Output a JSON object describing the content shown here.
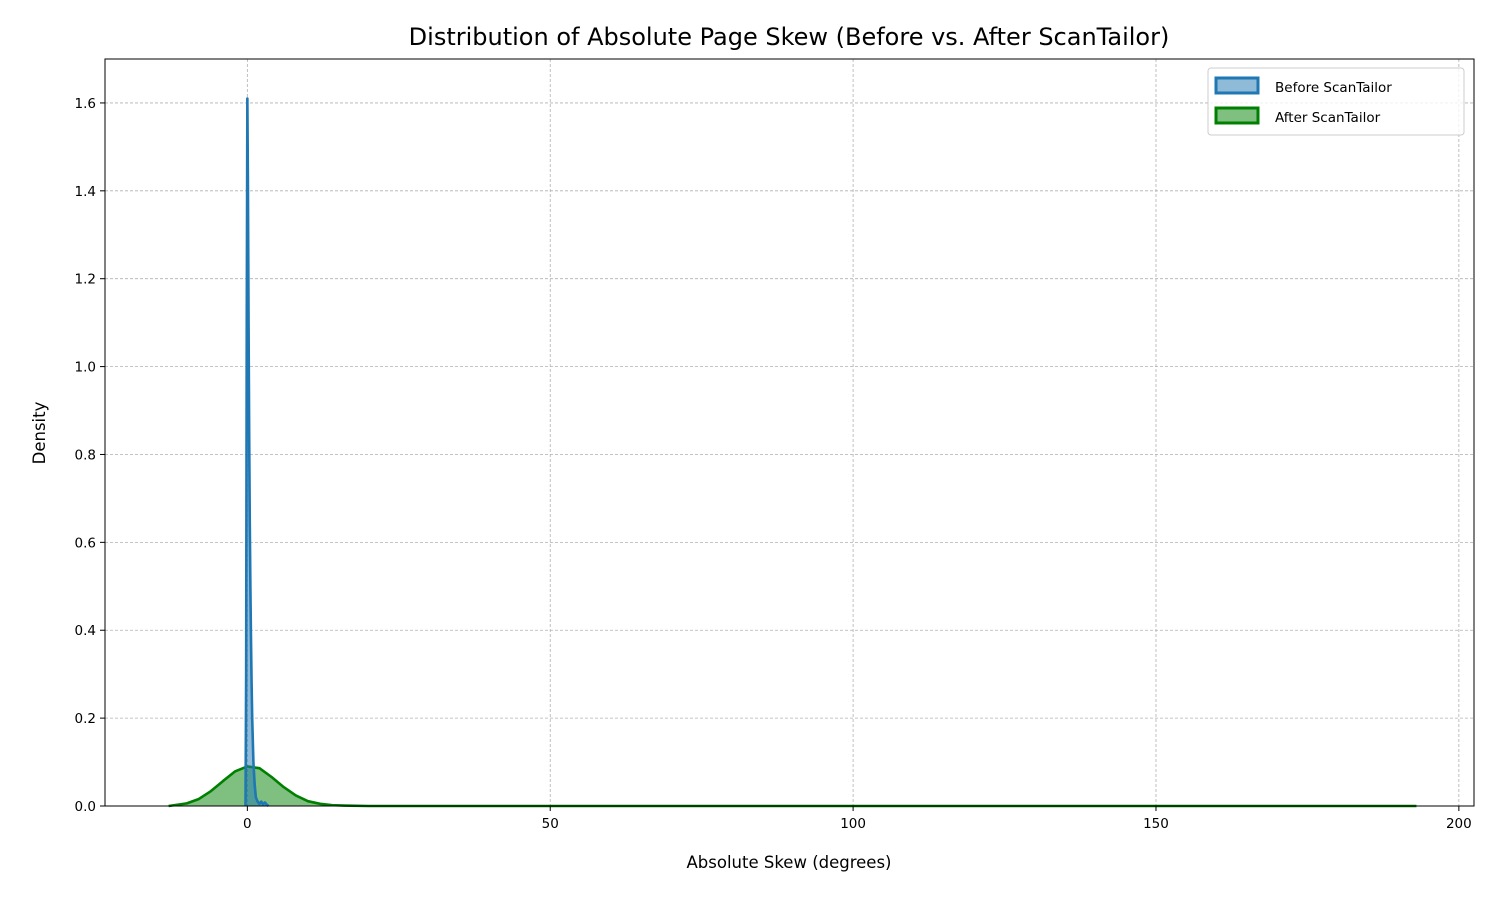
{
  "chart_data": {
    "type": "area",
    "title": "Distribution of Absolute Page Skew (Before vs. After ScanTailor)",
    "xlabel": "Absolute Skew (degrees)",
    "ylabel": "Density",
    "xlim": [
      -23.5,
      202.5
    ],
    "ylim": [
      0,
      1.7
    ],
    "xticks": [
      0,
      50,
      100,
      150,
      200
    ],
    "yticks": [
      0.0,
      0.2,
      0.4,
      0.6,
      0.8,
      1.0,
      1.2,
      1.4,
      1.6
    ],
    "xtick_labels": [
      "0",
      "50",
      "100",
      "150",
      "200"
    ],
    "ytick_labels": [
      "0.0",
      "0.2",
      "0.4",
      "0.6",
      "0.8",
      "1.0",
      "1.2",
      "1.4",
      "1.6"
    ],
    "grid": true,
    "legend_position": "upper-right",
    "series": [
      {
        "name": "Before ScanTailor",
        "color": "#1f77b4",
        "x": [
          -0.3,
          -0.2,
          -0.1,
          0.0,
          0.1,
          0.2,
          0.3,
          0.4,
          0.5,
          0.6,
          0.7,
          0.8,
          1.0,
          1.2,
          1.4,
          1.7,
          2.0,
          2.3,
          2.6,
          2.9,
          3.2,
          3.5
        ],
        "values": [
          0.0,
          0.3,
          1.1,
          1.61,
          1.4,
          1.1,
          0.85,
          0.65,
          0.5,
          0.38,
          0.28,
          0.2,
          0.1,
          0.05,
          0.02,
          0.01,
          0.005,
          0.01,
          0.004,
          0.008,
          0.003,
          0.0
        ]
      },
      {
        "name": "After ScanTailor",
        "color": "#008000",
        "x": [
          -13,
          -10,
          -8,
          -6,
          -4,
          -2,
          0,
          2,
          4,
          6,
          8,
          10,
          12,
          14,
          16,
          20,
          40,
          80,
          120,
          160,
          180,
          193
        ],
        "values": [
          0.0,
          0.006,
          0.016,
          0.034,
          0.057,
          0.079,
          0.09,
          0.086,
          0.066,
          0.043,
          0.024,
          0.011,
          0.005,
          0.002,
          0.001,
          0.0,
          0.0,
          0.0,
          0.0,
          0.0,
          0.0,
          0.0
        ]
      }
    ]
  }
}
